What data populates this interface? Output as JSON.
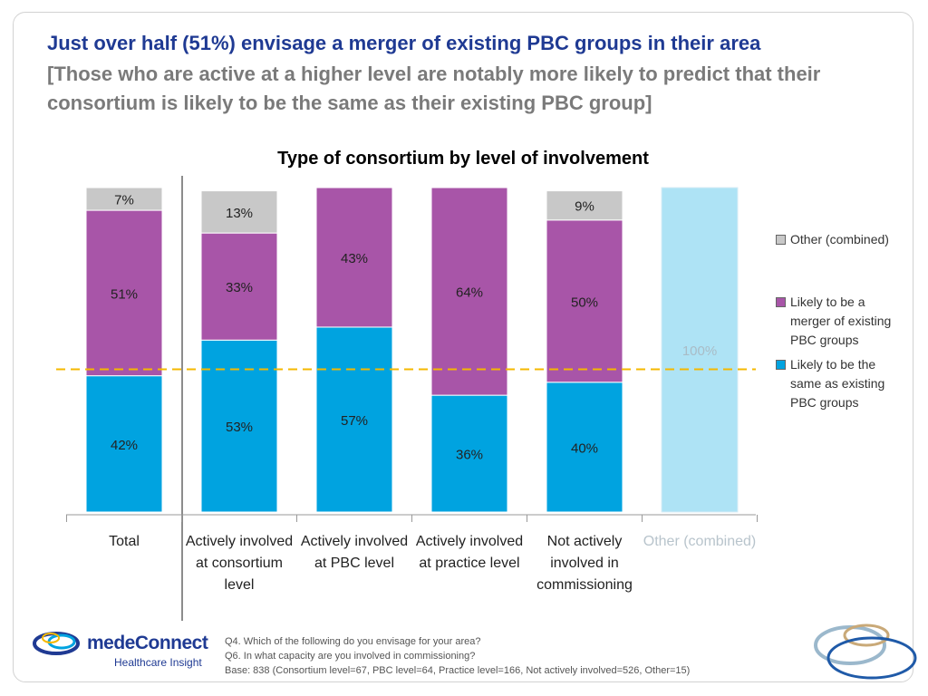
{
  "header": {
    "title": "Just over half (51%) envisage a merger of existing PBC groups in their area",
    "subtitle": "[Those who are active at a higher level are notably more likely to predict that their consortium is likely to be the same as their existing PBC group]"
  },
  "chart_data": {
    "type": "bar",
    "stacked": true,
    "title": "Type of consortium by level of involvement",
    "categories": [
      "Total",
      "Actively involved at consortium level",
      "Actively involved at PBC level",
      "Actively involved at practice level",
      "Not actively involved in commissioning",
      "Other (combined)"
    ],
    "series": [
      {
        "name": "Likely to be the same as existing PBC groups",
        "color": "#00a3e0",
        "values": [
          42,
          53,
          57,
          36,
          40,
          null
        ],
        "labels": [
          "42%",
          "53%",
          "57%",
          "36%",
          "40%",
          ""
        ]
      },
      {
        "name": "Likely to be a merger of existing PBC groups",
        "color": "#a855a8",
        "values": [
          51,
          33,
          43,
          64,
          50,
          null
        ],
        "labels": [
          "51%",
          "33%",
          "43%",
          "64%",
          "50%",
          ""
        ]
      },
      {
        "name": "Other (combined)",
        "color": "#c8c8c8",
        "values": [
          7,
          13,
          null,
          null,
          9,
          100
        ],
        "labels": [
          "7%",
          "13%",
          "",
          "",
          "9%",
          "100%"
        ]
      }
    ],
    "highlight_category": "Other (combined)",
    "highlight_color": "#aee3f5",
    "reference_line": {
      "value": 44,
      "color": "#f5b800",
      "style": "dashed"
    },
    "ylim": [
      0,
      100
    ],
    "grid": false,
    "legend": "right"
  },
  "footnote": {
    "lines": [
      "Q4. Which of the following do you envisage for your area?",
      "Q6. In what capacity are you involved in commissioning?",
      "Base: 838 (Consortium level=67, PBC level=64, Practice level=166, Not actively involved=526, Other=15)"
    ]
  },
  "logo": {
    "name": "medeConnect",
    "tagline": "Healthcare Insight"
  }
}
